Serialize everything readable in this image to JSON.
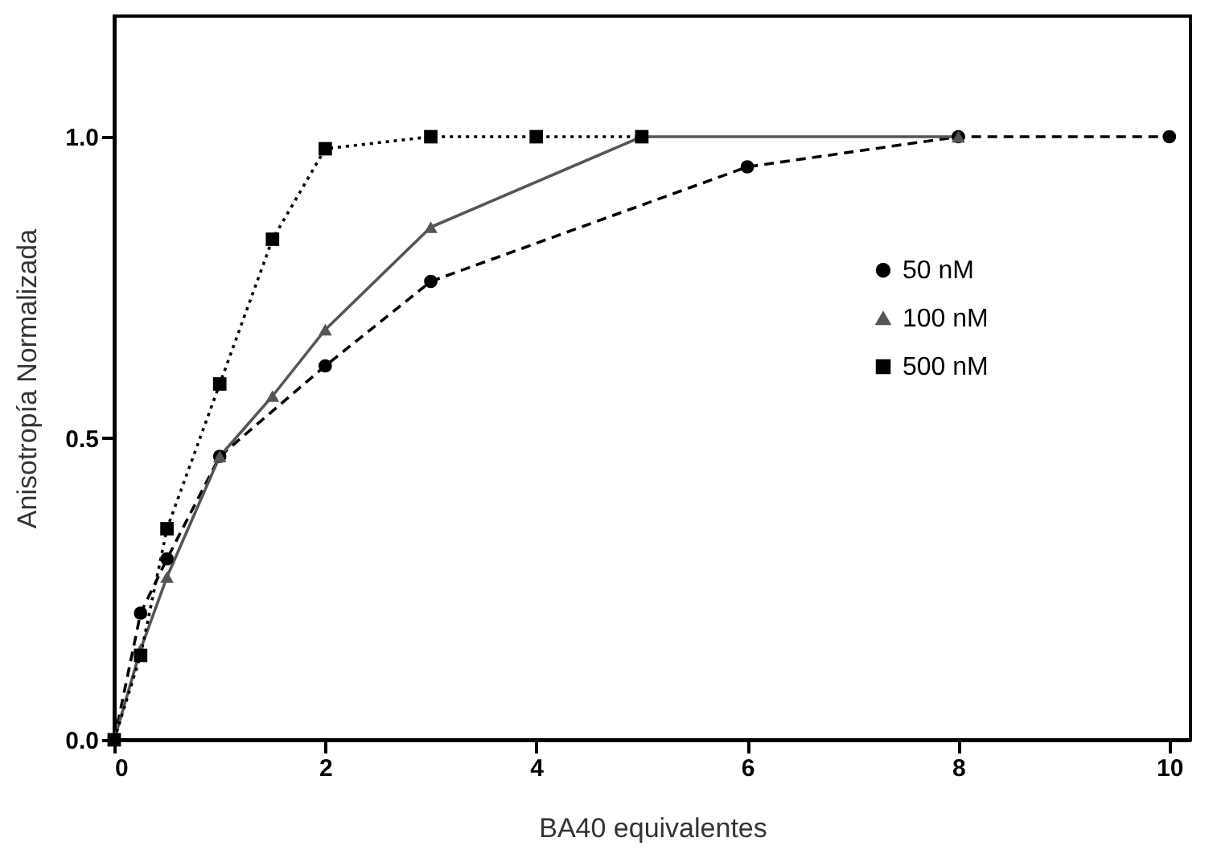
{
  "chart_data": {
    "type": "line",
    "xlabel": "BA40 equivalentes",
    "ylabel": "Anisotropía Normalizada",
    "xlim": [
      0,
      10.2
    ],
    "xticks": [
      0,
      2,
      4,
      6,
      8,
      10
    ],
    "ylim": [
      0,
      1.2
    ],
    "yticks": [
      {
        "value": 0,
        "label": "0.0"
      },
      {
        "value": 0.5,
        "label": "0.5"
      },
      {
        "value": 1,
        "label": "1.0"
      }
    ],
    "grid": false,
    "legend": "right",
    "series": [
      {
        "name": "50 nM",
        "color": "#000000",
        "marker": "circle",
        "line_style": "dashed",
        "x": [
          0,
          0.25,
          0.5,
          1,
          2,
          3,
          6,
          8,
          10
        ],
        "values": [
          0,
          0.21,
          0.3,
          0.47,
          0.62,
          0.76,
          0.95,
          1,
          1
        ]
      },
      {
        "name": "100 nM",
        "color": "#555555",
        "marker": "triangle",
        "line_style": "solid",
        "x": [
          0,
          0.25,
          0.5,
          1,
          1.5,
          2,
          3,
          5,
          8
        ],
        "values": [
          0,
          0.15,
          0.27,
          0.47,
          0.57,
          0.68,
          0.85,
          1,
          1
        ]
      },
      {
        "name": "500 nM",
        "color": "#000000",
        "marker": "square",
        "line_style": "dotted",
        "x": [
          0,
          0.25,
          0.5,
          1,
          1.5,
          2,
          3,
          4,
          5
        ],
        "values": [
          0,
          0.14,
          0.35,
          0.59,
          0.83,
          0.98,
          1,
          1,
          1
        ]
      }
    ]
  }
}
